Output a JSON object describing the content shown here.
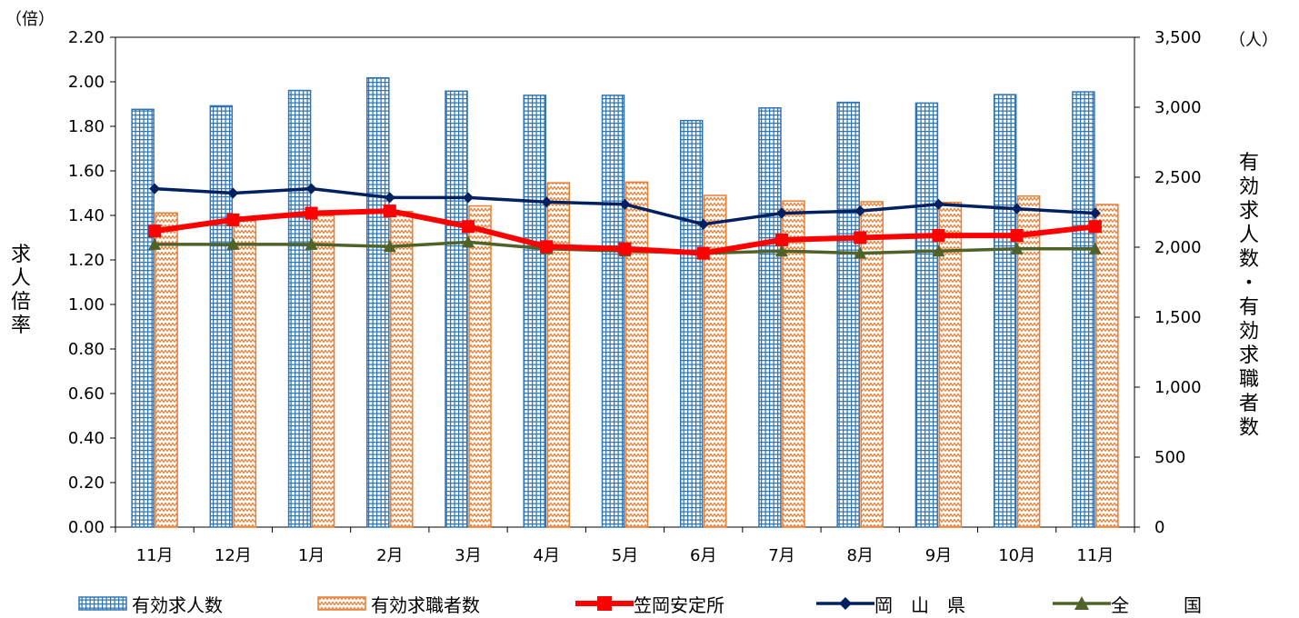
{
  "chart_data": {
    "type": "bar",
    "categories": [
      "11月",
      "12月",
      "1月",
      "2月",
      "3月",
      "4月",
      "5月",
      "6月",
      "7月",
      "8月",
      "9月",
      "10月",
      "11月"
    ],
    "series": [
      {
        "name": "有効求人数",
        "kind": "bar",
        "axis": "right",
        "color": "#2e75b6",
        "values": [
          2985,
          3010,
          3120,
          3210,
          3115,
          3085,
          3085,
          2905,
          2995,
          3035,
          3030,
          3090,
          3110
        ]
      },
      {
        "name": "有効求職者数",
        "kind": "bar",
        "axis": "right",
        "color": "#ed7d31",
        "values": [
          2245,
          2215,
          2225,
          2255,
          2295,
          2460,
          2465,
          2370,
          2330,
          2325,
          2320,
          2365,
          2305
        ]
      },
      {
        "name": "笠岡安定所",
        "kind": "line",
        "axis": "left",
        "color": "#ff0000",
        "marker": "square",
        "values": [
          1.33,
          1.38,
          1.41,
          1.42,
          1.35,
          1.26,
          1.25,
          1.23,
          1.29,
          1.3,
          1.31,
          1.31,
          1.35
        ]
      },
      {
        "name": "岡　山　県",
        "kind": "line",
        "axis": "left",
        "color": "#002060",
        "marker": "diamond",
        "values": [
          1.52,
          1.5,
          1.52,
          1.48,
          1.48,
          1.46,
          1.45,
          1.36,
          1.41,
          1.42,
          1.45,
          1.43,
          1.41
        ]
      },
      {
        "name": "全　　　国",
        "kind": "line",
        "axis": "left",
        "color": "#4f6228",
        "marker": "triangle",
        "values": [
          1.27,
          1.27,
          1.27,
          1.26,
          1.28,
          1.25,
          1.24,
          1.23,
          1.24,
          1.23,
          1.24,
          1.25,
          1.25
        ]
      }
    ],
    "y_left": {
      "unit": "（倍）",
      "label": "求人倍率",
      "ylim": [
        0,
        2.2
      ],
      "ticks": [
        "0.00",
        "0.20",
        "0.40",
        "0.60",
        "0.80",
        "1.00",
        "1.20",
        "1.40",
        "1.60",
        "1.80",
        "2.00",
        "2.20"
      ]
    },
    "y_right": {
      "unit": "（人）",
      "label": "有効求人数・有効求職者数",
      "ylim": [
        0,
        3500
      ],
      "ticks": [
        "0",
        "500",
        "1,000",
        "1,500",
        "2,000",
        "2,500",
        "3,000",
        "3,500"
      ]
    },
    "grid": false,
    "legend_position": "bottom"
  }
}
